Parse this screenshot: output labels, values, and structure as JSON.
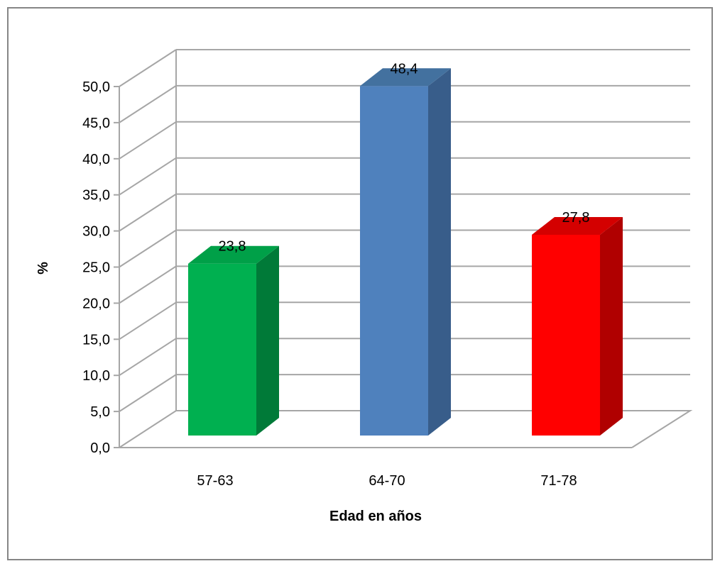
{
  "chart_data": {
    "type": "bar",
    "title": "",
    "xlabel": "Edad en años",
    "ylabel": "%",
    "categories": [
      "57-63",
      "64-70",
      "71-78"
    ],
    "values": [
      23.8,
      48.4,
      27.8
    ],
    "data_labels": [
      "23,8",
      "48,4",
      "27,8"
    ],
    "ylim": [
      0,
      50
    ],
    "yticks": [
      0,
      5,
      10,
      15,
      20,
      25,
      30,
      35,
      40,
      45,
      50
    ],
    "ytick_labels": [
      "0,0",
      "5,0",
      "10,0",
      "15,0",
      "20,0",
      "25,0",
      "30,0",
      "35,0",
      "40,0",
      "45,0",
      "50,0"
    ],
    "bar_colors": [
      "#00b050",
      "#4f81bd",
      "#ff0000"
    ],
    "bar_side_colors": [
      "#007a38",
      "#385d8a",
      "#b00000"
    ],
    "bar_top_colors": [
      "#00a048",
      "#43719f",
      "#d40000"
    ],
    "grid": true,
    "style": "3d-column",
    "legend": "none"
  }
}
